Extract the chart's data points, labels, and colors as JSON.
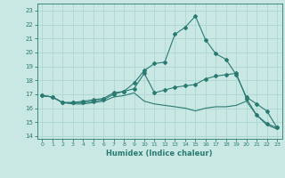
{
  "xlabel": "Humidex (Indice chaleur)",
  "xlim": [
    -0.5,
    23.5
  ],
  "ylim": [
    13.8,
    23.5
  ],
  "yticks": [
    14,
    15,
    16,
    17,
    18,
    19,
    20,
    21,
    22,
    23
  ],
  "xticks": [
    0,
    1,
    2,
    3,
    4,
    5,
    6,
    7,
    8,
    9,
    10,
    11,
    12,
    13,
    14,
    15,
    16,
    17,
    18,
    19,
    20,
    21,
    22,
    23
  ],
  "bg_color": "#c9e8e4",
  "grid_color": "#b0d8d4",
  "line_color": "#2a7a72",
  "line1_x": [
    0,
    1,
    2,
    3,
    4,
    5,
    6,
    7,
    8,
    9,
    10,
    11,
    12,
    13,
    14,
    15,
    16,
    17,
    18,
    19,
    20,
    21,
    22,
    23
  ],
  "line1_y": [
    16.9,
    16.8,
    16.4,
    16.4,
    16.4,
    16.5,
    16.6,
    17.0,
    17.2,
    17.4,
    18.5,
    17.1,
    17.3,
    17.5,
    17.6,
    17.7,
    18.1,
    18.3,
    18.4,
    18.5,
    16.7,
    15.5,
    14.9,
    14.6
  ],
  "line2_x": [
    0,
    1,
    2,
    3,
    4,
    5,
    6,
    7,
    8,
    9,
    10,
    11,
    12,
    13,
    14,
    15,
    16,
    17,
    18,
    19,
    20,
    21,
    22,
    23
  ],
  "line2_y": [
    16.9,
    16.8,
    16.4,
    16.4,
    16.5,
    16.6,
    16.7,
    17.1,
    17.2,
    17.8,
    18.7,
    19.2,
    19.3,
    21.3,
    21.8,
    22.6,
    20.9,
    19.9,
    19.5,
    18.4,
    16.8,
    16.3,
    15.8,
    14.6
  ],
  "line3_x": [
    0,
    1,
    2,
    3,
    4,
    5,
    6,
    7,
    8,
    9,
    10,
    11,
    12,
    13,
    14,
    15,
    16,
    17,
    18,
    19,
    20,
    21,
    22,
    23
  ],
  "line3_y": [
    16.9,
    16.8,
    16.4,
    16.3,
    16.3,
    16.4,
    16.5,
    16.8,
    16.9,
    17.1,
    16.5,
    16.3,
    16.2,
    16.1,
    16.0,
    15.8,
    16.0,
    16.1,
    16.1,
    16.2,
    16.5,
    15.5,
    14.8,
    14.5
  ]
}
